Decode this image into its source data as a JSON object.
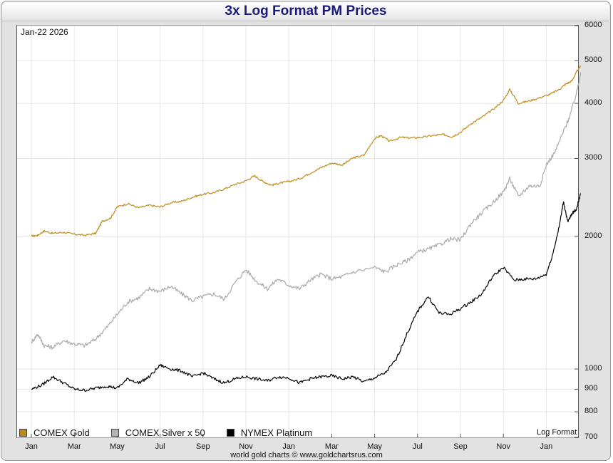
{
  "chart_data": {
    "type": "line",
    "title": "3x Log Format PM Prices",
    "date_label": "Jan-22  2026",
    "scale_note": "Log Format",
    "source": "world gold charts © www.goldchartsrus.com",
    "y_scale": "log",
    "ylim": [
      700,
      6000
    ],
    "y_ticks": [
      6000,
      5000,
      4000,
      3000,
      2000,
      1000,
      900,
      800,
      700
    ],
    "y_tick_labels": [
      "6000",
      "5000",
      "4000",
      "3000",
      "2000",
      "1000",
      "900",
      "800",
      "700"
    ],
    "x_ticks": [
      "Jan",
      "Mar",
      "May",
      "Jul",
      "Sep",
      "Nov",
      "Jan",
      "Mar",
      "May",
      "Jul",
      "Sep",
      "Nov",
      "Jan"
    ],
    "x_range_months": [
      0,
      25.6
    ],
    "series": [
      {
        "name": "COMEX Gold",
        "color": "#c08c1e",
        "legend_color": "#b8891e",
        "points": [
          [
            0,
            2000
          ],
          [
            0.3,
            2010
          ],
          [
            0.6,
            2055
          ],
          [
            1,
            2030
          ],
          [
            1.5,
            2040
          ],
          [
            2,
            2020
          ],
          [
            2.5,
            2010
          ],
          [
            3,
            2030
          ],
          [
            3.3,
            2160
          ],
          [
            3.7,
            2200
          ],
          [
            4,
            2330
          ],
          [
            4.5,
            2370
          ],
          [
            5,
            2320
          ],
          [
            5.5,
            2350
          ],
          [
            6,
            2330
          ],
          [
            6.5,
            2380
          ],
          [
            7,
            2400
          ],
          [
            7.5,
            2450
          ],
          [
            8,
            2490
          ],
          [
            8.5,
            2510
          ],
          [
            9,
            2560
          ],
          [
            9.5,
            2620
          ],
          [
            10,
            2670
          ],
          [
            10.4,
            2740
          ],
          [
            10.8,
            2660
          ],
          [
            11.2,
            2610
          ],
          [
            11.6,
            2640
          ],
          [
            12,
            2660
          ],
          [
            12.5,
            2700
          ],
          [
            13,
            2780
          ],
          [
            13.5,
            2860
          ],
          [
            14,
            2930
          ],
          [
            14.5,
            2900
          ],
          [
            15,
            3010
          ],
          [
            15.5,
            3050
          ],
          [
            16,
            3330
          ],
          [
            16.3,
            3380
          ],
          [
            16.7,
            3280
          ],
          [
            17.2,
            3350
          ],
          [
            17.7,
            3340
          ],
          [
            18.2,
            3350
          ],
          [
            18.7,
            3380
          ],
          [
            19.2,
            3400
          ],
          [
            19.6,
            3360
          ],
          [
            20,
            3440
          ],
          [
            20.5,
            3600
          ],
          [
            21,
            3720
          ],
          [
            21.5,
            3870
          ],
          [
            22,
            4060
          ],
          [
            22.3,
            4300
          ],
          [
            22.7,
            4000
          ],
          [
            23.2,
            4050
          ],
          [
            23.7,
            4120
          ],
          [
            24.2,
            4200
          ],
          [
            24.6,
            4300
          ],
          [
            24.9,
            4420
          ],
          [
            25.2,
            4500
          ],
          [
            25.4,
            4700
          ],
          [
            25.6,
            4860
          ]
        ]
      },
      {
        "name": "COMEX Silver x 50",
        "color": "#aaaaaa",
        "legend_color": "#b4b4b4",
        "points": [
          [
            0,
            1150
          ],
          [
            0.3,
            1200
          ],
          [
            0.6,
            1130
          ],
          [
            1,
            1120
          ],
          [
            1.5,
            1160
          ],
          [
            2,
            1140
          ],
          [
            2.5,
            1130
          ],
          [
            3,
            1170
          ],
          [
            3.5,
            1240
          ],
          [
            4,
            1330
          ],
          [
            4.5,
            1420
          ],
          [
            5,
            1450
          ],
          [
            5.5,
            1520
          ],
          [
            6,
            1500
          ],
          [
            6.5,
            1540
          ],
          [
            7,
            1480
          ],
          [
            7.5,
            1430
          ],
          [
            8,
            1460
          ],
          [
            8.5,
            1480
          ],
          [
            9,
            1440
          ],
          [
            9.5,
            1570
          ],
          [
            10,
            1680
          ],
          [
            10.5,
            1580
          ],
          [
            11,
            1520
          ],
          [
            11.5,
            1600
          ],
          [
            12,
            1550
          ],
          [
            12.5,
            1520
          ],
          [
            13,
            1590
          ],
          [
            13.5,
            1640
          ],
          [
            14,
            1600
          ],
          [
            14.5,
            1620
          ],
          [
            15,
            1660
          ],
          [
            16,
            1700
          ],
          [
            16.5,
            1660
          ],
          [
            17,
            1720
          ],
          [
            17.5,
            1760
          ],
          [
            18,
            1840
          ],
          [
            18.5,
            1870
          ],
          [
            19,
            1910
          ],
          [
            19.5,
            1970
          ],
          [
            20,
            1960
          ],
          [
            20.5,
            2140
          ],
          [
            21,
            2260
          ],
          [
            21.5,
            2380
          ],
          [
            22,
            2520
          ],
          [
            22.3,
            2700
          ],
          [
            22.7,
            2460
          ],
          [
            23.2,
            2600
          ],
          [
            23.7,
            2600
          ],
          [
            24,
            2900
          ],
          [
            24.4,
            3100
          ],
          [
            24.8,
            3450
          ],
          [
            25.1,
            3750
          ],
          [
            25.4,
            4200
          ],
          [
            25.6,
            4700
          ]
        ]
      },
      {
        "name": "NYMEX Platinum",
        "color": "#000000",
        "legend_color": "#000000",
        "points": [
          [
            0,
            900
          ],
          [
            0.5,
            920
          ],
          [
            1,
            960
          ],
          [
            1.5,
            930
          ],
          [
            2,
            900
          ],
          [
            2.5,
            895
          ],
          [
            3,
            905
          ],
          [
            3.5,
            915
          ],
          [
            4,
            905
          ],
          [
            4.5,
            950
          ],
          [
            5,
            930
          ],
          [
            5.5,
            960
          ],
          [
            6,
            1020
          ],
          [
            6.5,
            1000
          ],
          [
            7,
            990
          ],
          [
            7.5,
            960
          ],
          [
            8,
            980
          ],
          [
            8.5,
            950
          ],
          [
            9,
            930
          ],
          [
            9.5,
            950
          ],
          [
            10,
            960
          ],
          [
            10.5,
            950
          ],
          [
            11,
            940
          ],
          [
            11.5,
            960
          ],
          [
            12,
            955
          ],
          [
            12.5,
            930
          ],
          [
            13,
            950
          ],
          [
            13.5,
            960
          ],
          [
            14,
            965
          ],
          [
            14.5,
            950
          ],
          [
            15,
            960
          ],
          [
            15.5,
            935
          ],
          [
            16,
            955
          ],
          [
            16.5,
            980
          ],
          [
            17,
            1050
          ],
          [
            17.5,
            1200
          ],
          [
            18,
            1350
          ],
          [
            18.5,
            1460
          ],
          [
            19,
            1340
          ],
          [
            19.5,
            1330
          ],
          [
            20,
            1370
          ],
          [
            20.5,
            1420
          ],
          [
            21,
            1480
          ],
          [
            21.5,
            1620
          ],
          [
            22,
            1700
          ],
          [
            22.5,
            1590
          ],
          [
            23,
            1600
          ],
          [
            23.5,
            1600
          ],
          [
            24,
            1640
          ],
          [
            24.3,
            1820
          ],
          [
            24.6,
            2100
          ],
          [
            24.8,
            2400
          ],
          [
            25,
            2150
          ],
          [
            25.2,
            2250
          ],
          [
            25.4,
            2300
          ],
          [
            25.6,
            2500
          ]
        ]
      }
    ]
  },
  "colors": {
    "frame_bg": "#e2e2e2",
    "title_color": "#1a1a7a",
    "grid_color": "#e6e6e6"
  }
}
